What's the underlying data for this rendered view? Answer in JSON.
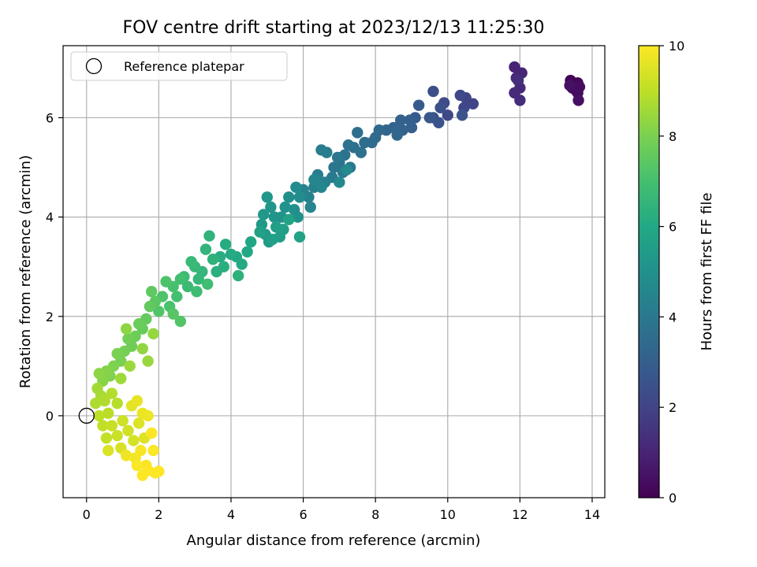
{
  "chart_data": {
    "type": "scatter",
    "title": "FOV centre drift starting at 2023/12/13 11:25:30",
    "xlabel": "Angular distance from reference (arcmin)",
    "ylabel": "Rotation from reference (arcmin)",
    "xlim": [
      -0.65,
      14.35
    ],
    "ylim": [
      -1.65,
      7.45
    ],
    "xticks": [
      0,
      2,
      4,
      6,
      8,
      10,
      12,
      14
    ],
    "yticks": [
      0,
      2,
      4,
      6
    ],
    "grid": true,
    "legend": {
      "placement": "top-left",
      "entries": [
        {
          "label": "Reference platepar",
          "marker": "open-circle",
          "x": 0,
          "y": 0
        }
      ]
    },
    "colorbar": {
      "label": "Hours from first FF file",
      "colormap": "viridis",
      "range": [
        0,
        10
      ],
      "ticks": [
        0,
        2,
        4,
        6,
        8,
        10
      ],
      "colors": [
        "#440154",
        "#482475",
        "#414487",
        "#355f8d",
        "#2a788e",
        "#21918c",
        "#22a884",
        "#44bf70",
        "#7ad151",
        "#bddf26",
        "#fde725"
      ]
    },
    "series": [
      {
        "points": [
          [
            13.4,
            6.75,
            0.05
          ],
          [
            13.5,
            6.7,
            0.1
          ],
          [
            13.6,
            6.7,
            0.15
          ],
          [
            13.45,
            6.6,
            0.2
          ],
          [
            13.55,
            6.55,
            0.25
          ],
          [
            13.6,
            6.5,
            0.3
          ],
          [
            13.65,
            6.62,
            0.35
          ],
          [
            13.62,
            6.35,
            0.4
          ],
          [
            13.38,
            6.65,
            0.45
          ],
          [
            11.85,
            7.02,
            1.0
          ],
          [
            12.05,
            6.9,
            1.05
          ],
          [
            11.9,
            6.8,
            1.1
          ],
          [
            12.0,
            6.6,
            1.15
          ],
          [
            11.85,
            6.5,
            1.2
          ],
          [
            12.0,
            6.35,
            1.25
          ],
          [
            11.95,
            6.75,
            1.3
          ],
          [
            10.7,
            6.28,
            2.0
          ],
          [
            10.5,
            6.4,
            2.05
          ],
          [
            10.45,
            6.2,
            2.1
          ],
          [
            10.35,
            6.45,
            2.15
          ],
          [
            10.0,
            6.05,
            2.2
          ],
          [
            9.9,
            6.3,
            2.25
          ],
          [
            9.6,
            6.53,
            2.4
          ],
          [
            9.8,
            6.2,
            2.45
          ],
          [
            9.6,
            6.0,
            2.5
          ],
          [
            9.75,
            5.9,
            2.55
          ],
          [
            10.4,
            6.05,
            2.6
          ],
          [
            9.5,
            6.0,
            2.7
          ],
          [
            9.2,
            6.25,
            2.8
          ],
          [
            9.1,
            6.0,
            2.9
          ],
          [
            9.0,
            5.8,
            3.0
          ],
          [
            8.95,
            5.95,
            3.05
          ],
          [
            8.75,
            5.75,
            3.1
          ],
          [
            8.7,
            5.95,
            3.15
          ],
          [
            8.5,
            5.8,
            3.2
          ],
          [
            8.3,
            5.75,
            3.25
          ],
          [
            8.6,
            5.65,
            3.3
          ],
          [
            8.1,
            5.75,
            3.4
          ],
          [
            8.0,
            5.6,
            3.45
          ],
          [
            7.9,
            5.5,
            3.5
          ],
          [
            7.7,
            5.5,
            3.55
          ],
          [
            7.5,
            5.7,
            3.6
          ],
          [
            7.4,
            5.4,
            3.65
          ],
          [
            7.6,
            5.3,
            3.7
          ],
          [
            7.25,
            5.45,
            3.75
          ],
          [
            7.15,
            5.25,
            3.8
          ],
          [
            7.0,
            5.1,
            3.85
          ],
          [
            6.85,
            5.0,
            3.9
          ],
          [
            6.95,
            5.2,
            3.95
          ],
          [
            7.3,
            5.0,
            4.0
          ],
          [
            7.1,
            4.9,
            4.05
          ],
          [
            6.8,
            4.8,
            4.1
          ],
          [
            6.65,
            5.3,
            4.15
          ],
          [
            6.5,
            5.35,
            4.2
          ],
          [
            6.4,
            4.85,
            4.25
          ],
          [
            6.6,
            4.7,
            4.3
          ],
          [
            6.3,
            4.6,
            4.35
          ],
          [
            6.15,
            4.4,
            4.4
          ],
          [
            6.0,
            4.55,
            4.45
          ],
          [
            6.2,
            4.2,
            4.5
          ],
          [
            6.5,
            4.6,
            4.55
          ],
          [
            6.3,
            4.75,
            4.6
          ],
          [
            7.0,
            4.7,
            4.65
          ],
          [
            7.2,
            4.95,
            4.7
          ],
          [
            5.9,
            4.4,
            4.8
          ],
          [
            5.8,
            4.6,
            4.85
          ],
          [
            5.6,
            4.4,
            4.9
          ],
          [
            5.75,
            4.15,
            4.95
          ],
          [
            5.85,
            4.0,
            5.0
          ],
          [
            5.5,
            4.2,
            5.05
          ],
          [
            5.4,
            4.0,
            5.1
          ],
          [
            5.2,
            4.0,
            5.15
          ],
          [
            5.0,
            4.4,
            5.2
          ],
          [
            5.1,
            4.2,
            5.25
          ],
          [
            4.9,
            4.05,
            5.3
          ],
          [
            4.85,
            3.85,
            5.35
          ],
          [
            4.95,
            3.65,
            5.4
          ],
          [
            5.05,
            3.5,
            5.45
          ],
          [
            5.25,
            3.8,
            5.5
          ],
          [
            5.35,
            3.6,
            5.55
          ],
          [
            5.45,
            3.75,
            5.6
          ],
          [
            5.15,
            3.55,
            5.65
          ],
          [
            4.8,
            3.7,
            5.7
          ],
          [
            5.9,
            3.6,
            5.75
          ],
          [
            5.6,
            3.95,
            5.8
          ],
          [
            4.55,
            3.5,
            5.9
          ],
          [
            4.45,
            3.3,
            5.95
          ],
          [
            4.15,
            3.2,
            6.0
          ],
          [
            4.3,
            3.05,
            6.05
          ],
          [
            4.0,
            3.25,
            6.1
          ],
          [
            3.85,
            3.45,
            6.15
          ],
          [
            3.7,
            3.2,
            6.2
          ],
          [
            3.8,
            3.0,
            6.25
          ],
          [
            3.6,
            2.9,
            6.3
          ],
          [
            4.2,
            2.82,
            6.35
          ],
          [
            3.5,
            3.15,
            6.4
          ],
          [
            3.4,
            3.62,
            6.45
          ],
          [
            3.3,
            3.35,
            6.5
          ],
          [
            3.2,
            2.9,
            6.55
          ],
          [
            3.1,
            2.75,
            6.6
          ],
          [
            3.0,
            3.0,
            6.65
          ],
          [
            2.9,
            3.1,
            6.7
          ],
          [
            2.8,
            2.6,
            6.75
          ],
          [
            2.7,
            2.8,
            6.8
          ],
          [
            3.05,
            2.5,
            6.85
          ],
          [
            3.35,
            2.65,
            6.9
          ],
          [
            2.6,
            2.75,
            6.95
          ],
          [
            2.5,
            2.4,
            7.0
          ],
          [
            2.4,
            2.6,
            7.05
          ],
          [
            2.3,
            2.2,
            7.1
          ],
          [
            2.2,
            2.7,
            7.15
          ],
          [
            2.1,
            2.4,
            7.2
          ],
          [
            2.0,
            2.1,
            7.25
          ],
          [
            2.6,
            1.9,
            7.3
          ],
          [
            2.4,
            2.05,
            7.35
          ],
          [
            1.9,
            2.3,
            7.4
          ],
          [
            1.8,
            2.5,
            7.5
          ],
          [
            1.75,
            2.2,
            7.55
          ],
          [
            1.65,
            1.95,
            7.6
          ],
          [
            1.55,
            1.75,
            7.65
          ],
          [
            1.45,
            1.85,
            7.7
          ],
          [
            1.35,
            1.6,
            7.75
          ],
          [
            1.25,
            1.4,
            7.8
          ],
          [
            1.15,
            1.55,
            7.85
          ],
          [
            1.05,
            1.3,
            7.9
          ],
          [
            0.95,
            1.1,
            7.95
          ],
          [
            0.85,
            1.25,
            8.0
          ],
          [
            0.75,
            1.0,
            8.05
          ],
          [
            0.65,
            0.8,
            8.1
          ],
          [
            0.55,
            0.9,
            8.15
          ],
          [
            0.45,
            0.7,
            8.2
          ],
          [
            0.35,
            0.85,
            8.25
          ],
          [
            1.1,
            1.75,
            8.3
          ],
          [
            1.55,
            1.35,
            8.35
          ],
          [
            1.85,
            1.65,
            8.4
          ],
          [
            1.7,
            1.1,
            8.45
          ],
          [
            1.2,
            1.0,
            8.5
          ],
          [
            0.95,
            0.75,
            8.55
          ],
          [
            0.3,
            0.55,
            8.6
          ],
          [
            0.4,
            0.4,
            8.65
          ],
          [
            0.25,
            0.25,
            8.75
          ],
          [
            0.5,
            0.3,
            8.8
          ],
          [
            0.7,
            0.45,
            8.85
          ],
          [
            0.85,
            0.25,
            8.9
          ],
          [
            0.6,
            0.05,
            8.95
          ],
          [
            0.35,
            0.0,
            9.0
          ],
          [
            0.45,
            -0.2,
            9.05
          ],
          [
            0.55,
            -0.45,
            9.1
          ],
          [
            0.7,
            -0.2,
            9.15
          ],
          [
            0.85,
            -0.4,
            9.2
          ],
          [
            1.0,
            -0.1,
            9.25
          ],
          [
            1.15,
            -0.3,
            9.3
          ],
          [
            1.3,
            -0.5,
            9.35
          ],
          [
            0.95,
            -0.65,
            9.4
          ],
          [
            0.6,
            -0.7,
            9.45
          ],
          [
            1.45,
            -0.15,
            9.5
          ],
          [
            1.6,
            -0.45,
            9.55
          ],
          [
            1.25,
            0.2,
            9.6
          ],
          [
            1.4,
            0.3,
            9.65
          ],
          [
            1.55,
            0.05,
            9.7
          ],
          [
            1.7,
            0.0,
            9.75
          ],
          [
            1.1,
            -0.8,
            9.8
          ],
          [
            1.35,
            -0.85,
            9.85
          ],
          [
            1.5,
            -0.7,
            9.9
          ],
          [
            1.65,
            -1.0,
            9.92
          ],
          [
            1.8,
            -0.35,
            9.94
          ],
          [
            1.85,
            -0.7,
            9.96
          ],
          [
            1.7,
            -1.1,
            9.97
          ],
          [
            1.55,
            -1.2,
            9.98
          ],
          [
            1.9,
            -1.15,
            9.99
          ],
          [
            2.0,
            -1.12,
            10.0
          ],
          [
            1.4,
            -1.0,
            9.95
          ]
        ]
      }
    ]
  }
}
